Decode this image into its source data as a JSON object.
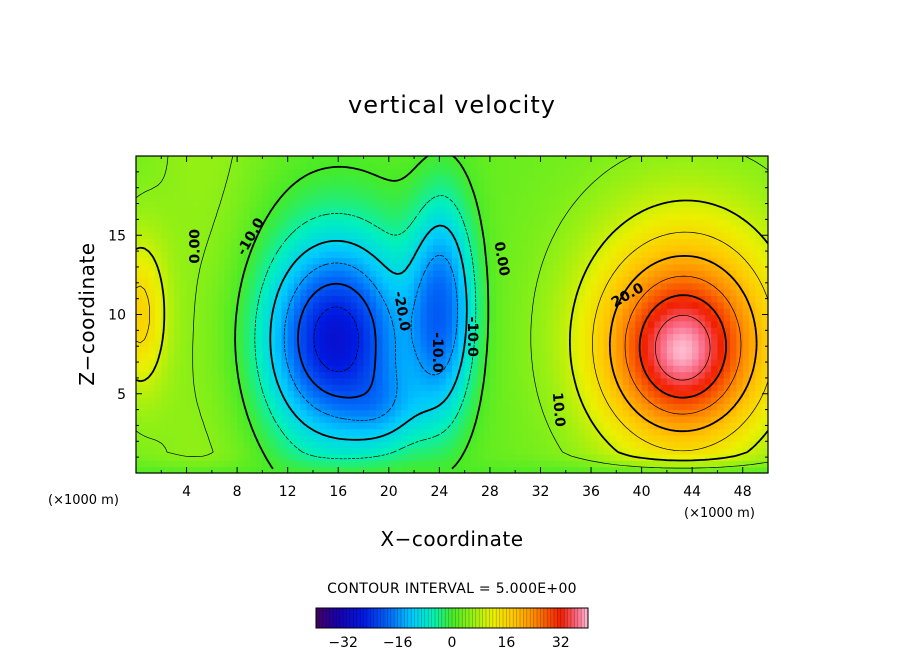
{
  "chart_data": {
    "type": "heatmap",
    "title": "vertical velocity",
    "xlabel": "X−coordinate",
    "ylabel": "Z−coordinate",
    "x_unit": "(×1000 m)",
    "z_unit": "(×1000 m)",
    "xlim": [
      0,
      50
    ],
    "ylim": [
      0,
      20
    ],
    "x_ticks": [
      4,
      8,
      12,
      16,
      20,
      24,
      28,
      32,
      36,
      40,
      44,
      48
    ],
    "y_ticks": [
      5,
      10,
      15
    ],
    "contour_interval_text": "CONTOUR INTERVAL = 5.000E+00",
    "contour_interval": 5,
    "contour_labels": [
      {
        "text": "0.00",
        "x": 4.7,
        "z": 14.3,
        "rotate": -90
      },
      {
        "text": "-10.0",
        "x": 9.1,
        "z": 14.9,
        "rotate": -60
      },
      {
        "text": "-20.0",
        "x": 21.0,
        "z": 10.2,
        "rotate": 80
      },
      {
        "text": "-10.0",
        "x": 23.8,
        "z": 7.6,
        "rotate": 90
      },
      {
        "text": "-10.0",
        "x": 26.6,
        "z": 8.6,
        "rotate": 90
      },
      {
        "text": "0.00",
        "x": 28.9,
        "z": 13.5,
        "rotate": 80
      },
      {
        "text": "20.0",
        "x": 38.9,
        "z": 11.2,
        "rotate": -30
      },
      {
        "text": "10.0",
        "x": 33.4,
        "z": 4.0,
        "rotate": 85
      }
    ],
    "features": [
      {
        "name": "updraft",
        "center_x": 43,
        "center_z": 7.5,
        "max_w": 35
      },
      {
        "name": "downdraft",
        "center_x": 15.5,
        "center_z": 8,
        "min_w": -30
      },
      {
        "name": "secondary downdraft",
        "center_x": 24,
        "center_z": 10,
        "min_w": -18
      }
    ],
    "colorbar": {
      "vmin": -40,
      "vmax": 40,
      "ticks": [
        -32,
        -16,
        0,
        16,
        32
      ],
      "tick_labels": [
        "−32",
        "−16",
        "0",
        "16",
        "32"
      ]
    }
  }
}
